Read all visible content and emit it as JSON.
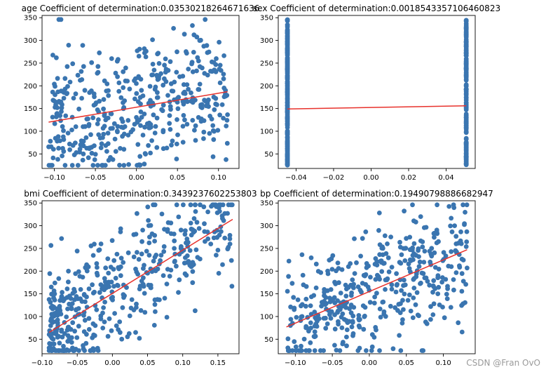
{
  "watermark": "CSDN @Fran OvO",
  "colors": {
    "point": "#3a75b0",
    "line": "#e8322c",
    "axis": "#000000"
  },
  "chart_data": [
    {
      "type": "scatter",
      "title": "age Coefficient of determination:0.03530218264671636",
      "xlim": [
        -0.115,
        0.125
      ],
      "ylim": [
        18,
        355
      ],
      "xticks": [
        -0.1,
        -0.05,
        0.0,
        0.05,
        0.1
      ],
      "xtick_labels": [
        "−0.10",
        "−0.05",
        "0.00",
        "0.05",
        "0.10"
      ],
      "yticks": [
        50,
        100,
        150,
        200,
        250,
        300,
        350
      ],
      "ytick_labels": [
        "50",
        "100",
        "150",
        "200",
        "250",
        "300",
        "350"
      ],
      "fit_line": {
        "x": [
          -0.107,
          0.111
        ],
        "y": [
          120,
          187
        ]
      },
      "distribution": {
        "kind": "uniform_x",
        "x_range": [
          -0.107,
          0.111
        ],
        "y_base": 152,
        "slope": 307,
        "spread": 74,
        "n": 442,
        "seed": 11
      },
      "grid": false
    },
    {
      "type": "scatter",
      "title": "sex Coefficient of determination:0.0018543357106460823",
      "xlim": [
        -0.0495,
        0.0555
      ],
      "ylim": [
        18,
        355
      ],
      "xticks": [
        -0.04,
        -0.02,
        0.0,
        0.02,
        0.04
      ],
      "xtick_labels": [
        "−0.04",
        "−0.02",
        "0.00",
        "0.02",
        "0.04"
      ],
      "yticks": [
        50,
        100,
        150,
        200,
        250,
        300,
        350
      ],
      "ytick_labels": [
        "50",
        "100",
        "150",
        "200",
        "250",
        "300",
        "350"
      ],
      "fit_line": {
        "x": [
          -0.0446,
          0.0507
        ],
        "y": [
          149,
          156
        ]
      },
      "distribution": {
        "kind": "binary_x",
        "x_values": [
          -0.0446,
          0.0507
        ],
        "y_range": [
          25,
          346
        ],
        "n": 442,
        "seed": 23
      },
      "grid": false
    },
    {
      "type": "scatter",
      "title": "bmi Coefficient of determination:0.3439237602253803",
      "xlim": [
        -0.1,
        0.18
      ],
      "ylim": [
        18,
        355
      ],
      "xticks": [
        -0.1,
        -0.05,
        0.0,
        0.05,
        0.1,
        0.15
      ],
      "xtick_labels": [
        "−0.10",
        "−0.05",
        "0.00",
        "0.05",
        "0.10",
        "0.15"
      ],
      "yticks": [
        50,
        100,
        150,
        200,
        250,
        300,
        350
      ],
      "ytick_labels": [
        "50",
        "100",
        "150",
        "200",
        "250",
        "300",
        "350"
      ],
      "fit_line": {
        "x": [
          -0.09,
          0.171
        ],
        "y": [
          65,
          314
        ]
      },
      "distribution": {
        "kind": "skew_x",
        "x_range": [
          -0.09,
          0.171
        ],
        "y_base": 152,
        "slope": 949,
        "spread": 62,
        "n": 442,
        "seed": 37
      },
      "grid": false
    },
    {
      "type": "scatter",
      "title": "bp Coefficient of determination:0.19490798886682947",
      "xlim": [
        -0.123,
        0.143
      ],
      "ylim": [
        18,
        355
      ],
      "xticks": [
        -0.1,
        -0.05,
        0.0,
        0.05,
        0.1
      ],
      "xtick_labels": [
        "−0.10",
        "−0.05",
        "0.00",
        "0.05",
        "0.10"
      ],
      "yticks": [
        50,
        100,
        150,
        200,
        250,
        300,
        350
      ],
      "ytick_labels": [
        "50",
        "100",
        "150",
        "200",
        "250",
        "300",
        "350"
      ],
      "fit_line": {
        "x": [
          -0.112,
          0.132
        ],
        "y": [
          77,
          247
        ]
      },
      "distribution": {
        "kind": "uniform_x",
        "x_range": [
          -0.112,
          0.132
        ],
        "y_base": 152,
        "slope": 700,
        "spread": 68,
        "n": 442,
        "seed": 53
      },
      "grid": false
    }
  ]
}
